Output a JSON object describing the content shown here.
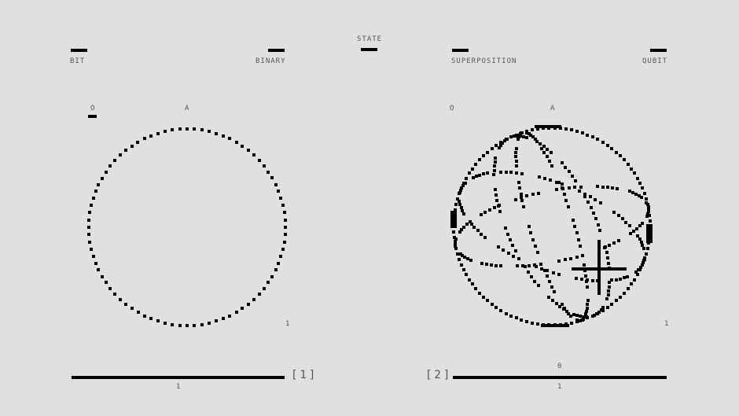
{
  "header": {
    "center_label": "STATE",
    "left": {
      "left_label": "BIT",
      "right_label": "BINARY"
    },
    "right": {
      "left_label": "SUPERPOSITION",
      "right_label": "QUBIT"
    }
  },
  "panels": [
    {
      "index_label": "[1]",
      "top_left": "O",
      "top_mid": "A",
      "right_value": "1",
      "axis_value": "1"
    },
    {
      "index_label": "[2]",
      "top_left": "O",
      "top_mid": "A",
      "right_value": "1",
      "axis_top_value": "0",
      "axis_value": "1"
    }
  ],
  "colors": {
    "background": "#e0e0e0",
    "ink": "#000000",
    "text": "#555555"
  }
}
